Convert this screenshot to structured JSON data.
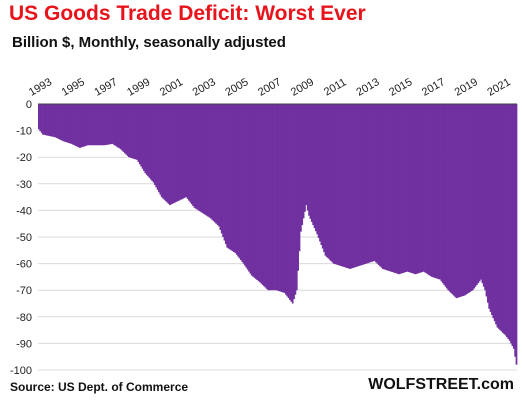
{
  "header": {
    "title": "US Goods Trade Deficit: Worst Ever",
    "subtitle": "Billion $, Monthly, seasonally adjusted"
  },
  "footer": {
    "source": "Source: US Dept. of Commerce",
    "brand": "WOLFSTREET.com"
  },
  "colors": {
    "bars": "#7030a0",
    "title": "#e8141b",
    "gridline": "#d9d9d9"
  },
  "chart_data": {
    "type": "bar",
    "title": "US Goods Trade Deficit: Worst Ever",
    "subtitle": "Billion $, Monthly, seasonally adjusted",
    "ylabel": "",
    "xlabel": "",
    "ylim": [
      -100,
      0
    ],
    "yticks": [
      0,
      -10,
      -20,
      -30,
      -40,
      -50,
      -60,
      -70,
      -80,
      -90,
      -100
    ],
    "xticks": [
      "1993",
      "1995",
      "1997",
      "1999",
      "2001",
      "2003",
      "2005",
      "2007",
      "2009",
      "2011",
      "2013",
      "2015",
      "2017",
      "2019",
      "2021"
    ],
    "x_start": "1993-01",
    "x_end": "2022-03",
    "grid": "horizontal",
    "legend": "none",
    "series": [
      {
        "name": "",
        "frequency": "monthly",
        "anchors": [
          [
            "1993-01",
            -9.5
          ],
          [
            "1993-04",
            -11.5
          ],
          [
            "1994-01",
            -12.5
          ],
          [
            "1994-07",
            -14
          ],
          [
            "1995-01",
            -15
          ],
          [
            "1995-07",
            -16.5
          ],
          [
            "1996-01",
            -15.5
          ],
          [
            "1996-07",
            -15.5
          ],
          [
            "1997-01",
            -15.5
          ],
          [
            "1997-07",
            -15
          ],
          [
            "1998-01",
            -17
          ],
          [
            "1998-07",
            -20
          ],
          [
            "1999-01",
            -21
          ],
          [
            "1999-07",
            -26
          ],
          [
            "2000-01",
            -29.5
          ],
          [
            "2000-07",
            -35
          ],
          [
            "2001-01",
            -38
          ],
          [
            "2001-07",
            -36.5
          ],
          [
            "2002-01",
            -35
          ],
          [
            "2002-07",
            -39
          ],
          [
            "2003-01",
            -41
          ],
          [
            "2003-07",
            -43
          ],
          [
            "2004-01",
            -46
          ],
          [
            "2004-07",
            -54
          ],
          [
            "2005-01",
            -56
          ],
          [
            "2005-07",
            -60
          ],
          [
            "2006-01",
            -64.5
          ],
          [
            "2006-07",
            -67
          ],
          [
            "2007-01",
            -70
          ],
          [
            "2007-07",
            -70
          ],
          [
            "2008-01",
            -71
          ],
          [
            "2008-07",
            -75
          ],
          [
            "2008-10",
            -70
          ],
          [
            "2009-01",
            -48
          ],
          [
            "2009-05",
            -38
          ],
          [
            "2009-07",
            -42
          ],
          [
            "2010-01",
            -49
          ],
          [
            "2010-07",
            -57
          ],
          [
            "2011-01",
            -60
          ],
          [
            "2011-07",
            -61
          ],
          [
            "2012-01",
            -62
          ],
          [
            "2012-07",
            -61
          ],
          [
            "2013-01",
            -60
          ],
          [
            "2013-07",
            -59
          ],
          [
            "2014-01",
            -62
          ],
          [
            "2014-07",
            -63
          ],
          [
            "2015-01",
            -64
          ],
          [
            "2015-07",
            -63
          ],
          [
            "2016-01",
            -64
          ],
          [
            "2016-07",
            -63
          ],
          [
            "2017-01",
            -65
          ],
          [
            "2017-07",
            -66
          ],
          [
            "2018-01",
            -70
          ],
          [
            "2018-07",
            -73
          ],
          [
            "2019-01",
            -72
          ],
          [
            "2019-07",
            -70
          ],
          [
            "2020-01",
            -66
          ],
          [
            "2020-04",
            -70
          ],
          [
            "2020-07",
            -77
          ],
          [
            "2021-01",
            -84
          ],
          [
            "2021-07",
            -87
          ],
          [
            "2021-10",
            -89
          ],
          [
            "2022-01",
            -92
          ],
          [
            "2022-03",
            -98
          ]
        ]
      }
    ]
  }
}
